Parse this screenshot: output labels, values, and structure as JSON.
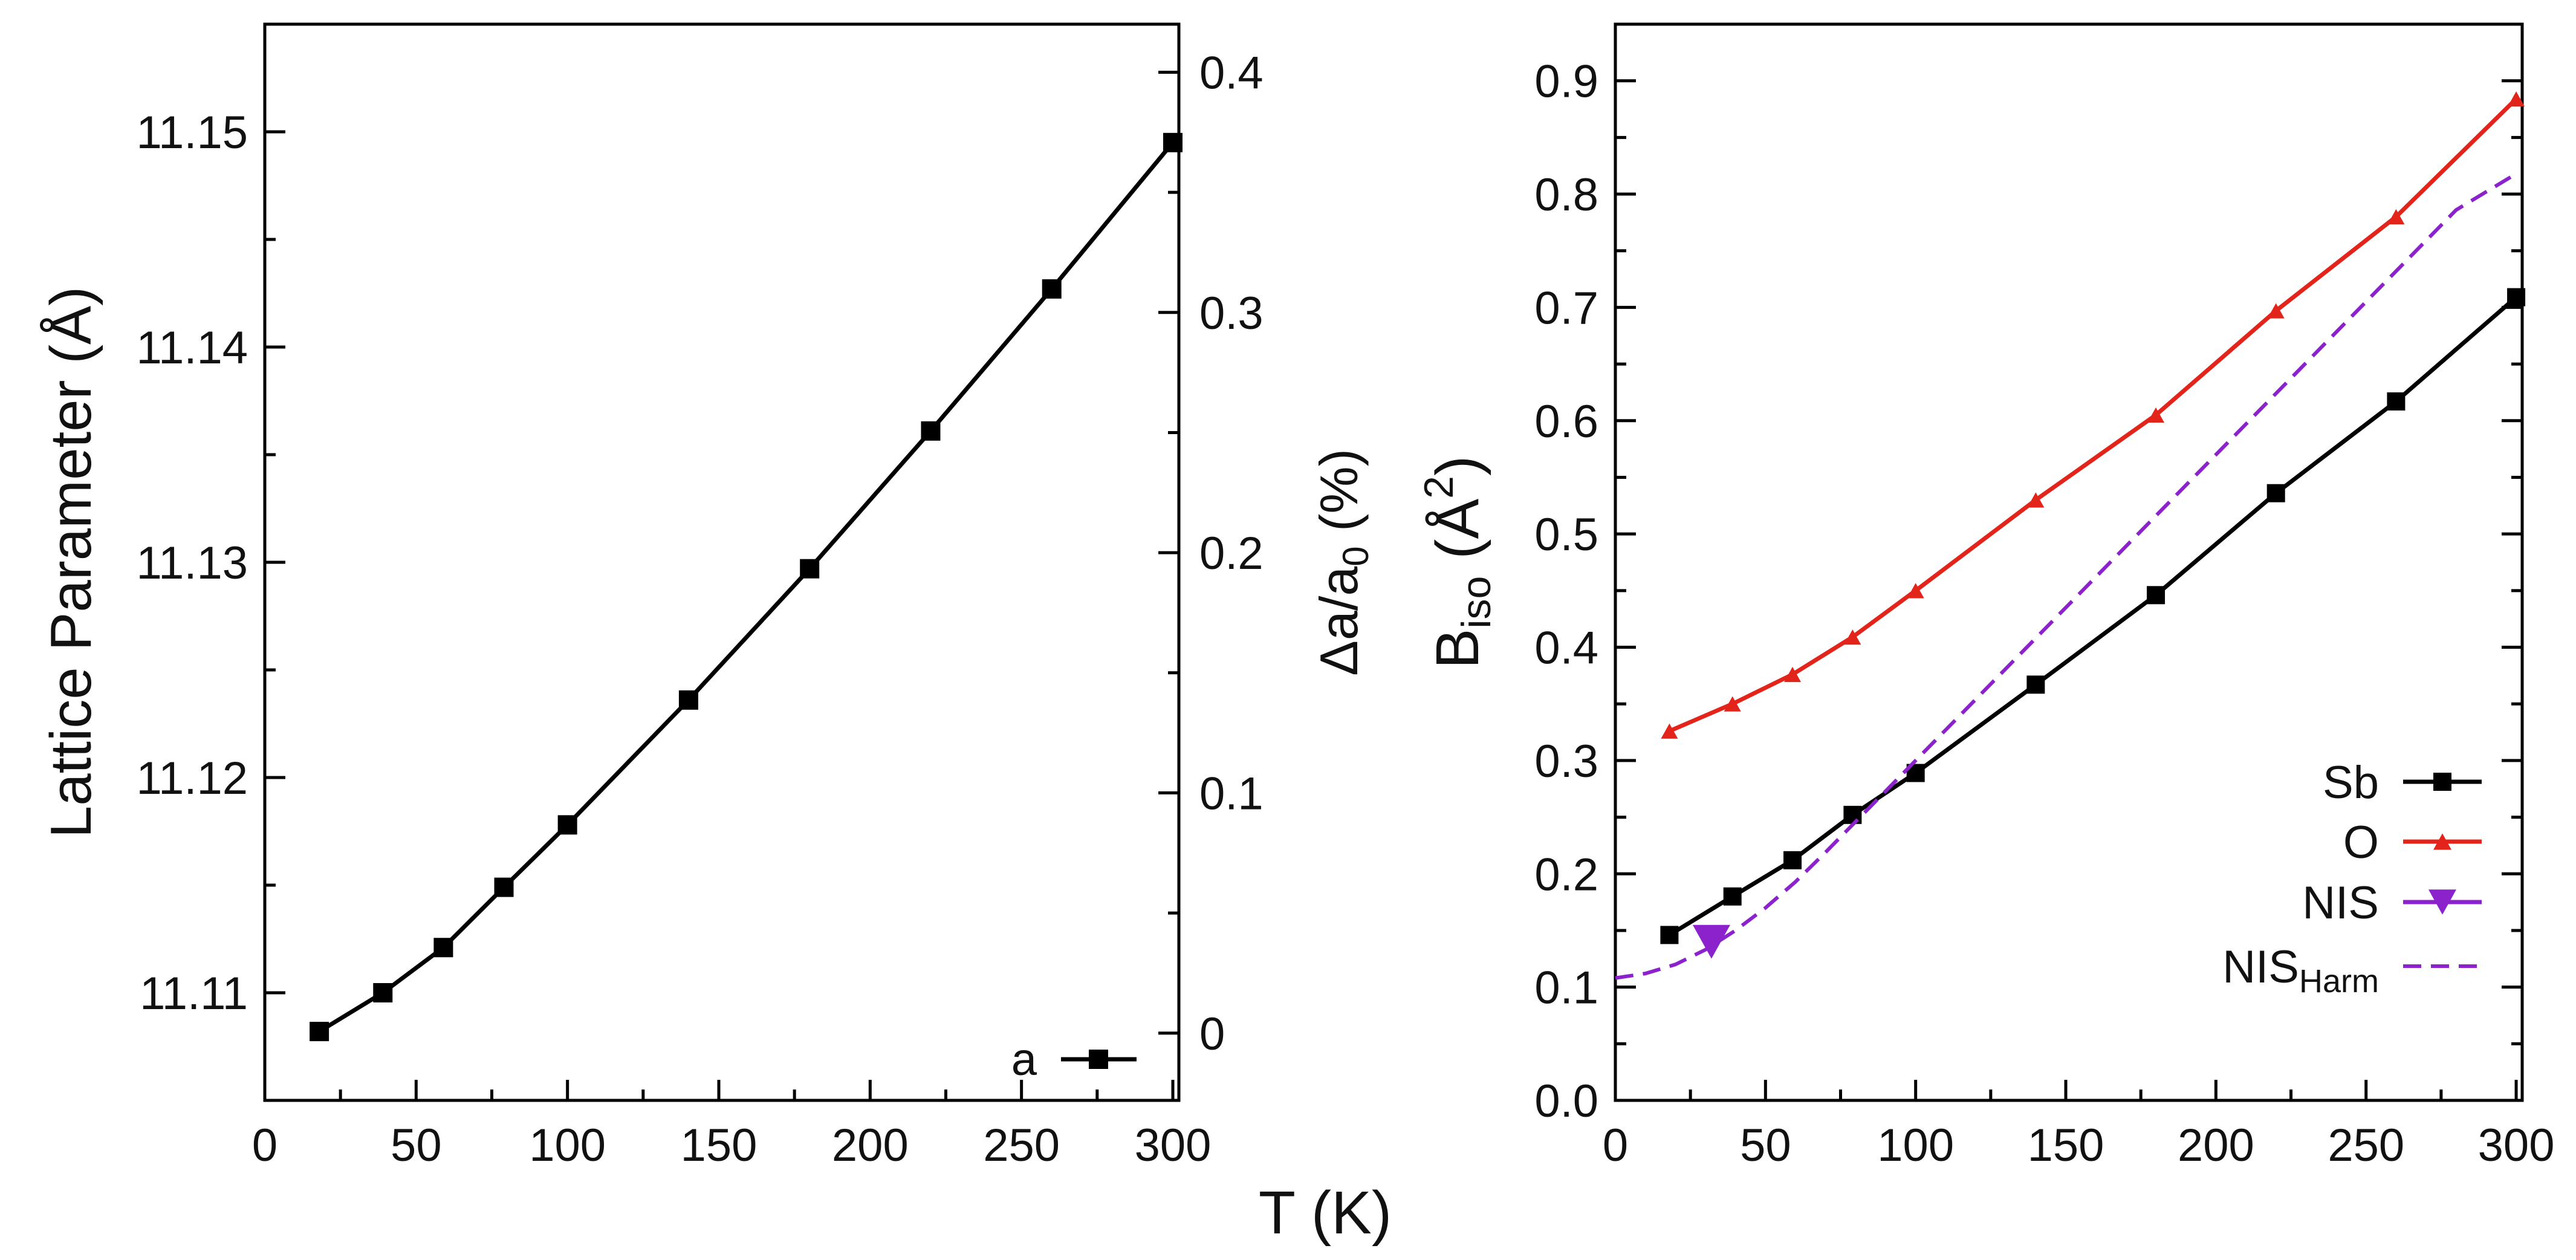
{
  "figure": {
    "shared_xlabel": "T (K)"
  },
  "chart_data": [
    {
      "id": "left",
      "type": "line",
      "xlabel": "T (K)",
      "ylabel": "Lattice Parameter (Å)",
      "ylabel_right": "Δa/a0 (%)",
      "xlim": [
        0,
        302
      ],
      "ylim": [
        11.105,
        11.155
      ],
      "ylim_right": [
        -0.028,
        0.42
      ],
      "x_ticks": [
        0,
        50,
        100,
        150,
        200,
        250,
        300
      ],
      "x_tick_labels": [
        "0",
        "50",
        "100",
        "150",
        "200",
        "250",
        "300"
      ],
      "y_ticks": [
        11.11,
        11.12,
        11.13,
        11.14,
        11.15
      ],
      "y_tick_labels": [
        "11.11",
        "11.12",
        "11.13",
        "11.14",
        "11.15"
      ],
      "y_right_ticks": [
        0,
        0.1,
        0.2,
        0.3,
        0.4
      ],
      "y_right_tick_labels": [
        "0",
        "0.1",
        "0.2",
        "0.3",
        "0.4"
      ],
      "legend_position": "bottom-right",
      "series": [
        {
          "name": "a",
          "color": "#000000",
          "marker": "square",
          "x": [
            18,
            39,
            59,
            79,
            100,
            140,
            180,
            220,
            260,
            300
          ],
          "y": [
            11.1082,
            11.11,
            11.1121,
            11.1149,
            11.1178,
            11.1236,
            11.1297,
            11.1361,
            11.1427,
            11.1495
          ]
        }
      ]
    },
    {
      "id": "right",
      "type": "line",
      "xlabel": "T (K)",
      "ylabel": "Biso (Å2)",
      "xlim": [
        0,
        302
      ],
      "ylim": [
        0,
        0.95
      ],
      "x_ticks": [
        0,
        50,
        100,
        150,
        200,
        250,
        300
      ],
      "x_tick_labels": [
        "0",
        "50",
        "100",
        "150",
        "200",
        "250",
        "300"
      ],
      "y_ticks": [
        0,
        0.1,
        0.2,
        0.3,
        0.4,
        0.5,
        0.6,
        0.7,
        0.8,
        0.9
      ],
      "y_tick_labels": [
        "0.0",
        "0.1",
        "0.2",
        "0.3",
        "0.4",
        "0.5",
        "0.6",
        "0.7",
        "0.8",
        "0.9"
      ],
      "legend_position": "bottom-right",
      "series": [
        {
          "name": "Sb",
          "color": "#000000",
          "marker": "square",
          "x": [
            18,
            39,
            59,
            79,
            100,
            140,
            180,
            220,
            260,
            300
          ],
          "y": [
            0.146,
            0.18,
            0.212,
            0.252,
            0.289,
            0.367,
            0.446,
            0.536,
            0.617,
            0.709
          ]
        },
        {
          "name": "O",
          "color": "#e3241b",
          "marker": "triangle-up",
          "x": [
            18,
            39,
            59,
            79,
            100,
            140,
            180,
            220,
            260,
            300
          ],
          "y": [
            0.326,
            0.35,
            0.376,
            0.409,
            0.45,
            0.53,
            0.605,
            0.697,
            0.78,
            0.884
          ]
        },
        {
          "name": "NIS",
          "color": "#8b22cc",
          "marker": "triangle-down",
          "x": [
            32
          ],
          "y": [
            0.14
          ]
        },
        {
          "name": "NISHarm",
          "label_main": "NIS",
          "label_sub": "Harm",
          "color": "#8b22cc",
          "style": "dashed",
          "x": [
            0,
            10,
            20,
            30,
            40,
            50,
            60,
            70,
            80,
            100,
            120,
            140,
            160,
            180,
            200,
            220,
            240,
            260,
            280,
            300
          ],
          "y": [
            0.108,
            0.112,
            0.12,
            0.133,
            0.15,
            0.17,
            0.193,
            0.219,
            0.246,
            0.3,
            0.354,
            0.408,
            0.462,
            0.516,
            0.57,
            0.624,
            0.678,
            0.732,
            0.786,
            0.818
          ]
        }
      ]
    }
  ]
}
